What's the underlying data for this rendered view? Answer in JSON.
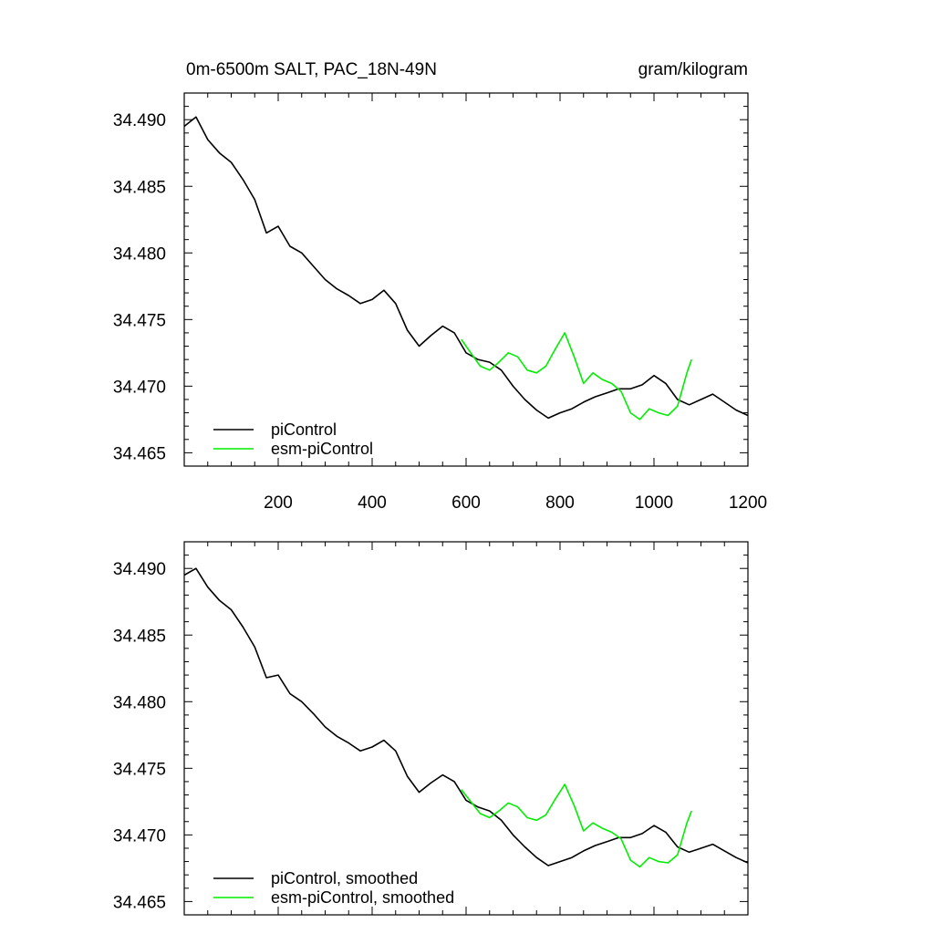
{
  "chart_data": [
    {
      "type": "line",
      "title": "0m-6500m SALT, PAC_18N-49N",
      "units": "gram/kilogram",
      "xlim": [
        0,
        1200
      ],
      "ylim": [
        34.464,
        34.492
      ],
      "x_tick_labels": [
        "200",
        "400",
        "600",
        "800",
        "1000",
        "1200"
      ],
      "y_tick_labels": [
        "34.490",
        "34.485",
        "34.480",
        "34.475",
        "34.470",
        "34.465"
      ],
      "legend_position": "bottom-left",
      "series": [
        {
          "name": "piControl",
          "color": "#000000",
          "x": [
            0,
            25,
            50,
            75,
            100,
            125,
            150,
            175,
            200,
            225,
            250,
            275,
            300,
            325,
            350,
            375,
            400,
            425,
            450,
            475,
            500,
            525,
            550,
            575,
            600,
            625,
            650,
            675,
            700,
            725,
            750,
            775,
            800,
            825,
            850,
            875,
            900,
            925,
            950,
            975,
            1000,
            1025,
            1050,
            1075,
            1100,
            1125,
            1150,
            1175,
            1200
          ],
          "y": [
            34.4895,
            34.4902,
            34.4885,
            34.4875,
            34.4868,
            34.4855,
            34.484,
            34.4815,
            34.482,
            34.4805,
            34.48,
            34.479,
            34.478,
            34.4773,
            34.4768,
            34.4762,
            34.4765,
            34.4772,
            34.4762,
            34.4742,
            34.473,
            34.4738,
            34.4745,
            34.474,
            34.4725,
            34.472,
            34.4718,
            34.4712,
            34.47,
            34.469,
            34.4682,
            34.4676,
            34.468,
            34.4683,
            34.4688,
            34.4692,
            34.4695,
            34.4698,
            34.4698,
            34.4701,
            34.4708,
            34.4702,
            34.469,
            34.4686,
            34.469,
            34.4694,
            34.4688,
            34.4682,
            34.4678
          ]
        },
        {
          "name": "esm-piControl",
          "color": "#00ee00",
          "x": [
            590,
            610,
            630,
            650,
            670,
            690,
            710,
            730,
            750,
            770,
            790,
            810,
            830,
            850,
            870,
            890,
            910,
            930,
            950,
            970,
            990,
            1010,
            1030,
            1050,
            1070,
            1080
          ],
          "y": [
            34.4735,
            34.4725,
            34.4715,
            34.4712,
            34.4718,
            34.4725,
            34.4722,
            34.4712,
            34.471,
            34.4715,
            34.4728,
            34.474,
            34.4722,
            34.4702,
            34.471,
            34.4705,
            34.4702,
            34.4696,
            34.468,
            34.4675,
            34.4683,
            34.468,
            34.4678,
            34.4685,
            34.471,
            34.472
          ]
        }
      ]
    },
    {
      "type": "line",
      "xlim": [
        0,
        1200
      ],
      "ylim": [
        34.464,
        34.492
      ],
      "y_tick_labels": [
        "34.490",
        "34.485",
        "34.480",
        "34.475",
        "34.470",
        "34.465"
      ],
      "legend_position": "bottom-left",
      "series": [
        {
          "name": "piControl, smoothed",
          "color": "#000000",
          "x": [
            0,
            25,
            50,
            75,
            100,
            125,
            150,
            175,
            200,
            225,
            250,
            275,
            300,
            325,
            350,
            375,
            400,
            425,
            450,
            475,
            500,
            525,
            550,
            575,
            600,
            625,
            650,
            675,
            700,
            725,
            750,
            775,
            800,
            825,
            850,
            875,
            900,
            925,
            950,
            975,
            1000,
            1025,
            1050,
            1075,
            1100,
            1125,
            1150,
            1175,
            1200
          ],
          "y": [
            34.4895,
            34.49,
            34.4886,
            34.4876,
            34.4869,
            34.4856,
            34.4841,
            34.4818,
            34.482,
            34.4806,
            34.48,
            34.4791,
            34.4781,
            34.4774,
            34.4769,
            34.4763,
            34.4766,
            34.4771,
            34.4763,
            34.4744,
            34.4732,
            34.4739,
            34.4745,
            34.474,
            34.4726,
            34.4721,
            34.4718,
            34.4711,
            34.47,
            34.4691,
            34.4683,
            34.4677,
            34.468,
            34.4683,
            34.4688,
            34.4692,
            34.4695,
            34.4698,
            34.4698,
            34.4701,
            34.4707,
            34.4702,
            34.4691,
            34.4687,
            34.469,
            34.4693,
            34.4688,
            34.4683,
            34.4679
          ]
        },
        {
          "name": "esm-piControl, smoothed",
          "color": "#00ee00",
          "x": [
            590,
            610,
            630,
            650,
            670,
            690,
            710,
            730,
            750,
            770,
            790,
            810,
            830,
            850,
            870,
            890,
            910,
            930,
            950,
            970,
            990,
            1010,
            1030,
            1050,
            1070,
            1080
          ],
          "y": [
            34.4734,
            34.4725,
            34.4716,
            34.4713,
            34.4718,
            34.4724,
            34.4721,
            34.4713,
            34.4711,
            34.4715,
            34.4727,
            34.4738,
            34.4722,
            34.4703,
            34.4709,
            34.4705,
            34.4702,
            34.4697,
            34.4681,
            34.4676,
            34.4683,
            34.468,
            34.4679,
            34.4685,
            34.4709,
            34.4718
          ]
        }
      ]
    }
  ]
}
